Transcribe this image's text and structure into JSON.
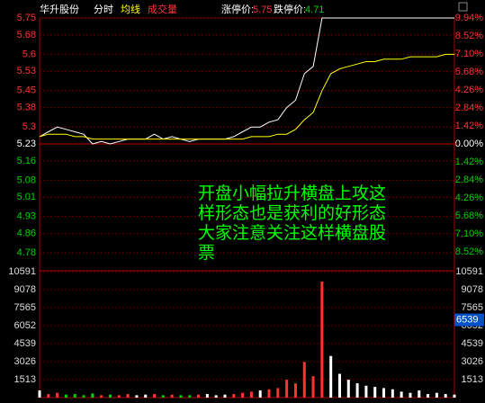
{
  "header": {
    "stock": "华升股份",
    "limit_up_label": "涨停价:",
    "limit_up": "5.75",
    "limit_down_label": "跌停价:",
    "limit_down": "4.71"
  },
  "chart_data": [
    {
      "type": "line",
      "ylim": [
        4.71,
        5.75
      ],
      "yticks": [
        5.75,
        5.68,
        5.6,
        5.53,
        5.45,
        5.38,
        5.3,
        5.23,
        5.16,
        5.08,
        5.01,
        4.93,
        4.86,
        4.78
      ],
      "y2lim": [
        -9.94,
        9.94
      ],
      "y2ticks": [
        {
          "value": 9.94,
          "label": "9.94%"
        },
        {
          "value": 8.52,
          "label": "8.52%"
        },
        {
          "value": 7.1,
          "label": "7.10%"
        },
        {
          "value": 5.68,
          "label": "5.68%"
        },
        {
          "value": 4.26,
          "label": "4.26%"
        },
        {
          "value": 2.84,
          "label": "2.84%"
        },
        {
          "value": 1.42,
          "label": "1.42%"
        },
        {
          "value": 0,
          "label": "0.00%"
        },
        {
          "value": -1.42,
          "label": "1.42%"
        },
        {
          "value": -2.84,
          "label": "2.84%"
        },
        {
          "value": -4.26,
          "label": "4.26%"
        },
        {
          "value": -5.68,
          "label": "5.68%"
        },
        {
          "value": -7.1,
          "label": "7.10%"
        },
        {
          "value": -8.52,
          "label": "8.52%"
        }
      ],
      "up_color": "#ff3232",
      "down_color": "#00d200",
      "flat_color": "#ffffff",
      "grid": true,
      "series": [
        {
          "name": "分时",
          "color": "#ffffff",
          "values": [
            5.26,
            5.28,
            5.3,
            5.29,
            5.28,
            5.27,
            5.23,
            5.24,
            5.23,
            5.24,
            5.25,
            5.25,
            5.25,
            5.27,
            5.25,
            5.26,
            5.25,
            5.24,
            5.25,
            5.25,
            5.25,
            5.25,
            5.26,
            5.28,
            5.3,
            5.3,
            5.32,
            5.33,
            5.38,
            5.41,
            5.52,
            5.55,
            5.75,
            5.75,
            5.75,
            5.75,
            5.75,
            5.75,
            5.75,
            5.75,
            5.75,
            5.75,
            5.75,
            5.75,
            5.75,
            5.75,
            5.75,
            5.75
          ]
        },
        {
          "name": "均线",
          "color": "#ffff00",
          "values": [
            5.26,
            5.27,
            5.27,
            5.27,
            5.26,
            5.26,
            5.25,
            5.25,
            5.25,
            5.25,
            5.25,
            5.25,
            5.25,
            5.25,
            5.25,
            5.25,
            5.25,
            5.25,
            5.25,
            5.25,
            5.25,
            5.25,
            5.25,
            5.25,
            5.26,
            5.26,
            5.26,
            5.27,
            5.27,
            5.29,
            5.33,
            5.36,
            5.45,
            5.52,
            5.54,
            5.55,
            5.56,
            5.57,
            5.57,
            5.58,
            5.58,
            5.58,
            5.59,
            5.59,
            5.59,
            5.59,
            5.6,
            5.6
          ]
        }
      ],
      "annotation": [
        "开盘小幅拉升横盘上攻这",
        "样形态也是获利的好形态",
        "大家注意关注这样横盘股",
        "票"
      ],
      "annotation_color": "#00ff00"
    },
    {
      "type": "bar",
      "name": "成交量",
      "ylim": [
        0,
        10591
      ],
      "yticks": [
        10591,
        9078,
        7565,
        6052,
        4539,
        3026,
        1513
      ],
      "grid": true,
      "current": 6539,
      "values": [
        600,
        300,
        400,
        250,
        300,
        200,
        350,
        200,
        250,
        200,
        300,
        200,
        250,
        300,
        200,
        250,
        200,
        200,
        250,
        300,
        200,
        250,
        300,
        400,
        500,
        600,
        700,
        800,
        1500,
        1200,
        3000,
        1800,
        9760,
        3500,
        2000,
        1500,
        1200,
        1000,
        900,
        800,
        700,
        500,
        400,
        600,
        300,
        400,
        300,
        250
      ]
    }
  ]
}
